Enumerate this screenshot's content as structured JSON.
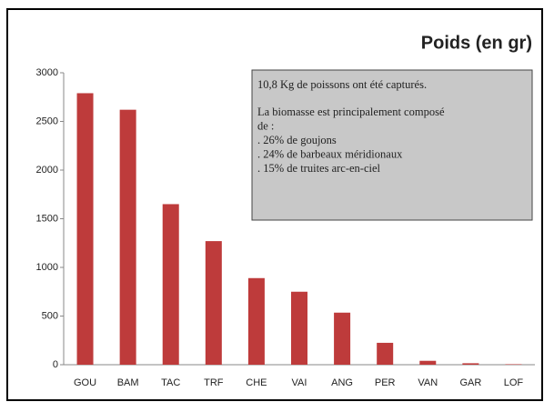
{
  "chart_data": {
    "type": "bar",
    "title": "Poids (en gr)",
    "categories": [
      "GOU",
      "BAM",
      "TAC",
      "TRF",
      "CHE",
      "VAI",
      "ANG",
      "PER",
      "VAN",
      "GAR",
      "LOF"
    ],
    "values": [
      2790,
      2620,
      1650,
      1270,
      890,
      750,
      535,
      225,
      40,
      15,
      5
    ],
    "color": "#be3b3b",
    "ylim": [
      0,
      3000
    ],
    "yticks": [
      0,
      500,
      1000,
      1500,
      2000,
      2500,
      3000
    ],
    "grid": false,
    "annotation": [
      "10,8 Kg de poissons ont été capturés.",
      "La biomasse est principalement composé",
      "de :",
      ". 26% de goujons",
      ". 24% de barbeaux méridionaux",
      ". 15% de truites arc-en-ciel"
    ]
  }
}
